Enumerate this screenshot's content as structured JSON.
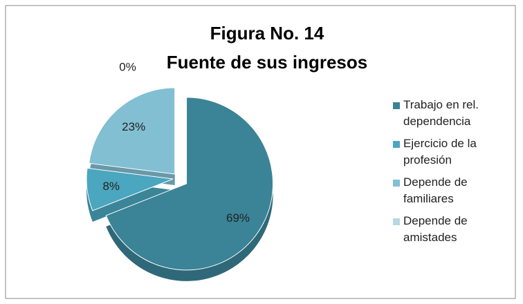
{
  "chart_data": {
    "type": "pie",
    "title": "Figura No. 14",
    "subtitle": "Fuente de sus ingresos",
    "categories": [
      "Trabajo en rel. dependencia",
      "Ejercicio de la profesión",
      "Depende de familiares",
      "Depende de amistades"
    ],
    "values": [
      69,
      8,
      23,
      0
    ],
    "value_labels": [
      "69%",
      "8%",
      "23%",
      "0%"
    ],
    "colors": [
      "#3b8397",
      "#4ba6bf",
      "#82bfd3",
      "#b8d8e3"
    ],
    "legend": "right"
  }
}
